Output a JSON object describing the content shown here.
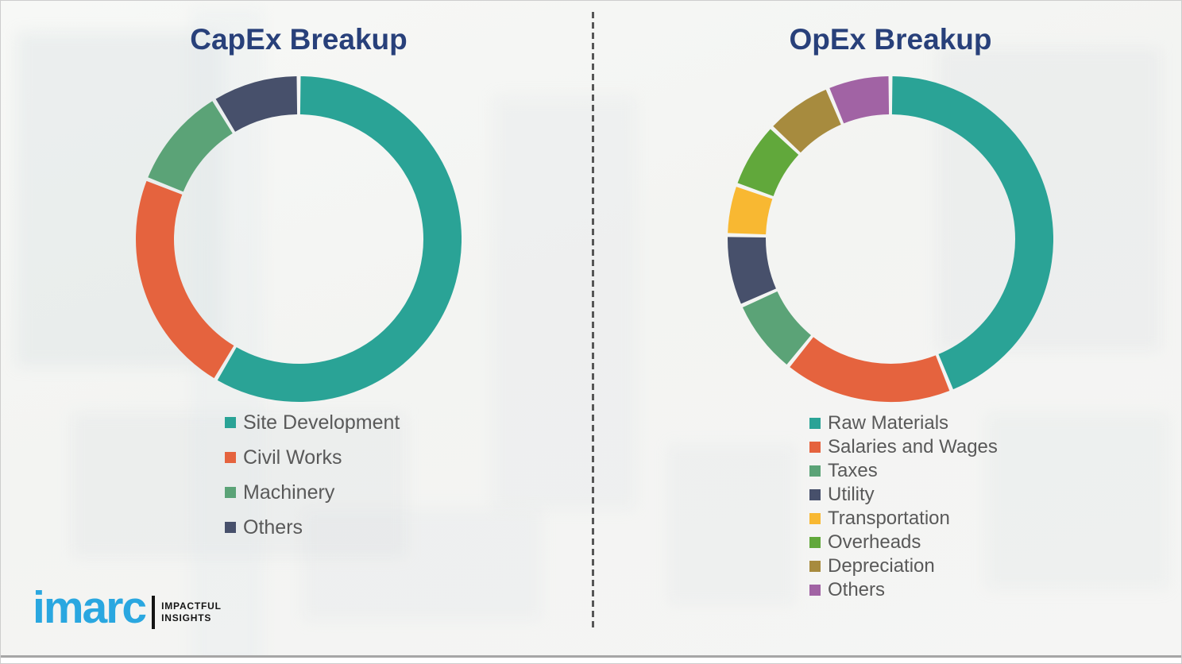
{
  "page": {
    "background_color": "#f4f5f3",
    "divider_color": "#565656",
    "title_color": "#28407a",
    "legend_text_color": "#595959"
  },
  "chart_data": [
    {
      "type": "pie",
      "donut": true,
      "title": "CapEx Breakup",
      "categories": [
        "Site Development",
        "Civil Works",
        "Machinery",
        "Others"
      ],
      "values": [
        58.5,
        22.5,
        10.3,
        8.7
      ],
      "colors": [
        "#2aa396",
        "#e5633e",
        "#5ba377",
        "#47506b"
      ],
      "legend_position": "bottom-left",
      "start_angle_deg": 0,
      "direction": "clockwise"
    },
    {
      "type": "pie",
      "donut": true,
      "title": "OpEx Breakup",
      "categories": [
        "Raw Materials",
        "Salaries and Wages",
        "Taxes",
        "Utility",
        "Transportation",
        "Overheads",
        "Depreciation",
        "Others"
      ],
      "values": [
        43.9,
        16.9,
        7.5,
        7.1,
        5.0,
        6.6,
        6.7,
        6.3
      ],
      "colors": [
        "#2aa396",
        "#e5633e",
        "#5ba377",
        "#47506b",
        "#f8b832",
        "#61a83b",
        "#a78b3e",
        "#a163a4"
      ],
      "legend_position": "bottom-left",
      "start_angle_deg": 0,
      "direction": "clockwise"
    }
  ],
  "branding": {
    "logo_text": "imarc",
    "logo_color": "#2aa7e0",
    "tagline_line1": "IMPACTFUL",
    "tagline_line2": "INSIGHTS"
  }
}
